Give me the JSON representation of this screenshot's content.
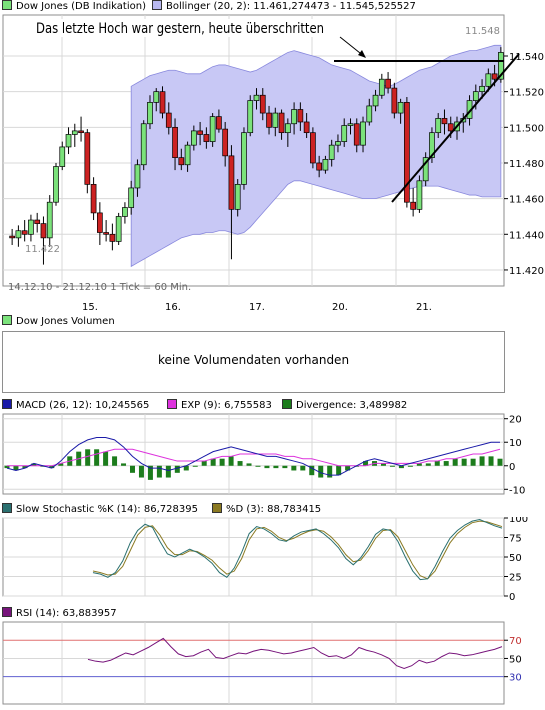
{
  "colors": {
    "up": "#7be27b",
    "down": "#cc2222",
    "band_fill": "#c8c8f5",
    "band_line": "#8888dd",
    "grid": "#d8d8d8",
    "macd": "#1a1aa8",
    "exp": "#dd33dd",
    "divergence": "#1c7c1c",
    "stoch_k": "#2a7070",
    "stoch_d": "#8b7a22",
    "rsi": "#77147b",
    "rsi_upper": "#e07070",
    "rsi_lower": "#6060d0"
  },
  "price_panel": {
    "legend_main": "Dow Jones (DB Indikation)",
    "legend_bollinger": "Bollinger (20, 2): 11.461,274473 - 11.545,525527",
    "annotation": "Das letzte Hoch war gestern, heute überschritten",
    "period": "14.12.10 - 21.12.10",
    "tick_info": "1 Tick = 60 Min.",
    "max_label": "11.548",
    "min_label": "11.422",
    "x_labels": [
      "15.",
      "16.",
      "17.",
      "20.",
      "21."
    ],
    "y_ticks": [
      "11.540",
      "11.520",
      "11.500",
      "11.480",
      "11.460",
      "11.440",
      "11.420"
    ]
  },
  "volume_panel": {
    "legend": "Dow Jones Volumen",
    "message": "keine Volumendaten vorhanden"
  },
  "macd_panel": {
    "legend_macd": "MACD (26, 12): 10,245565",
    "legend_exp": "EXP (9): 6,755583",
    "legend_div": "Divergence: 3,489982",
    "y_ticks": [
      "20",
      "10",
      "0",
      "-10"
    ]
  },
  "stoch_panel": {
    "legend_k": "Slow Stochastic %K (14): 86,728395",
    "legend_d": "%D (3): 88,783415",
    "y_ticks": [
      "100",
      "75",
      "50",
      "25",
      "0"
    ]
  },
  "rsi_panel": {
    "legend": "RSI (14): 63,883957",
    "y_ticks": [
      "70",
      "50",
      "30"
    ]
  },
  "chart_data": [
    {
      "type": "candlestick",
      "title": "Dow Jones (DB Indikation)",
      "ylim": [
        11411,
        11563
      ],
      "x": [
        "14.12.",
        "15.12.",
        "16.12.",
        "17.12.",
        "20.12.",
        "21.12."
      ],
      "candles": [
        [
          11439,
          11443,
          11434,
          11438
        ],
        [
          11438,
          11445,
          11433,
          11442
        ],
        [
          11442,
          11448,
          11436,
          11440
        ],
        [
          11440,
          11451,
          11436,
          11448
        ],
        [
          11448,
          11452,
          11441,
          11446
        ],
        [
          11446,
          11450,
          11423,
          11438
        ],
        [
          11438,
          11462,
          11433,
          11458
        ],
        [
          11458,
          11480,
          11456,
          11478
        ],
        [
          11478,
          11492,
          11476,
          11489
        ],
        [
          11489,
          11500,
          11485,
          11496
        ],
        [
          11496,
          11502,
          11489,
          11498
        ],
        [
          11498,
          11506,
          11492,
          11497
        ],
        [
          11497,
          11499,
          11463,
          11468
        ],
        [
          11468,
          11472,
          11448,
          11452
        ],
        [
          11452,
          11458,
          11434,
          11441
        ],
        [
          11441,
          11448,
          11436,
          11440
        ],
        [
          11440,
          11446,
          11431,
          11436
        ],
        [
          11436,
          11452,
          11434,
          11450
        ],
        [
          11450,
          11458,
          11446,
          11455
        ],
        [
          11455,
          11470,
          11451,
          11466
        ],
        [
          11466,
          11482,
          11461,
          11479
        ],
        [
          11479,
          11504,
          11476,
          11502
        ],
        [
          11502,
          11518,
          11499,
          11514
        ],
        [
          11514,
          11522,
          11509,
          11520
        ],
        [
          11520,
          11523,
          11505,
          11508
        ],
        [
          11508,
          11514,
          11496,
          11500
        ],
        [
          11500,
          11505,
          11476,
          11483
        ],
        [
          11483,
          11488,
          11476,
          11479
        ],
        [
          11479,
          11492,
          11475,
          11490
        ],
        [
          11490,
          11501,
          11487,
          11498
        ],
        [
          11498,
          11503,
          11490,
          11496
        ],
        [
          11496,
          11500,
          11488,
          11492
        ],
        [
          11492,
          11508,
          11489,
          11506
        ],
        [
          11506,
          11510,
          11497,
          11499
        ],
        [
          11499,
          11503,
          11478,
          11484
        ],
        [
          11484,
          11490,
          11426,
          11454
        ],
        [
          11454,
          11471,
          11450,
          11468
        ],
        [
          11468,
          11500,
          11465,
          11497
        ],
        [
          11497,
          11518,
          11495,
          11515
        ],
        [
          11515,
          11522,
          11510,
          11518
        ],
        [
          11518,
          11522,
          11504,
          11508
        ],
        [
          11508,
          11512,
          11496,
          11500
        ],
        [
          11500,
          11511,
          11495,
          11508
        ],
        [
          11508,
          11510,
          11493,
          11497
        ],
        [
          11497,
          11505,
          11489,
          11502
        ],
        [
          11502,
          11514,
          11496,
          11510
        ],
        [
          11510,
          11514,
          11498,
          11503
        ],
        [
          11503,
          11508,
          11494,
          11497
        ],
        [
          11497,
          11500,
          11477,
          11480
        ],
        [
          11480,
          11484,
          11472,
          11476
        ],
        [
          11476,
          11484,
          11474,
          11482
        ],
        [
          11482,
          11493,
          11478,
          11490
        ],
        [
          11490,
          11496,
          11486,
          11492
        ],
        [
          11492,
          11505,
          11489,
          11501
        ],
        [
          11501,
          11505,
          11496,
          11502
        ],
        [
          11502,
          11505,
          11486,
          11490
        ],
        [
          11490,
          11506,
          11486,
          11503
        ],
        [
          11503,
          11516,
          11501,
          11512
        ],
        [
          11512,
          11521,
          11509,
          11518
        ],
        [
          11518,
          11530,
          11516,
          11527
        ],
        [
          11527,
          11531,
          11519,
          11522
        ],
        [
          11522,
          11525,
          11505,
          11508
        ],
        [
          11508,
          11516,
          11502,
          11514
        ],
        [
          11514,
          11517,
          11455,
          11458
        ],
        [
          11458,
          11466,
          11450,
          11454
        ],
        [
          11454,
          11473,
          11452,
          11470
        ],
        [
          11470,
          11486,
          11467,
          11483
        ],
        [
          11483,
          11500,
          11480,
          11497
        ],
        [
          11497,
          11508,
          11494,
          11505
        ],
        [
          11505,
          11510,
          11496,
          11502
        ],
        [
          11502,
          11506,
          11494,
          11498
        ],
        [
          11498,
          11506,
          11493,
          11503
        ],
        [
          11503,
          11508,
          11497,
          11505
        ],
        [
          11505,
          11518,
          11501,
          11515
        ],
        [
          11515,
          11524,
          11510,
          11520
        ],
        [
          11520,
          11527,
          11516,
          11523
        ],
        [
          11523,
          11533,
          11520,
          11530
        ],
        [
          11530,
          11535,
          11523,
          11527
        ],
        [
          11527,
          11545,
          11525,
          11542
        ]
      ],
      "bollinger_upper": [
        11523,
        11525,
        11527,
        11529,
        11530,
        11531,
        11532,
        11532,
        11531,
        11530,
        11530,
        11530,
        11532,
        11534,
        11535,
        11535,
        11534,
        11533,
        11532,
        11531,
        11532,
        11534,
        11536,
        11538,
        11540,
        11542,
        11543,
        11542,
        11541,
        11540,
        11539,
        11537,
        11535,
        11534,
        11533,
        11532,
        11530,
        11528,
        11526,
        11525,
        11524,
        11523,
        11524,
        11526,
        11528,
        11530,
        11532,
        11533,
        11534,
        11536,
        11538,
        11540,
        11541,
        11542,
        11543,
        11543,
        11544,
        11545,
        11546,
        11546
      ],
      "bollinger_lower": [
        11422,
        11424,
        11426,
        11428,
        11430,
        11432,
        11434,
        11436,
        11438,
        11439,
        11440,
        11440,
        11441,
        11441,
        11442,
        11442,
        11441,
        11440,
        11441,
        11444,
        11448,
        11452,
        11456,
        11460,
        11464,
        11468,
        11470,
        11470,
        11469,
        11468,
        11467,
        11466,
        11465,
        11464,
        11463,
        11462,
        11461,
        11460,
        11460,
        11460,
        11461,
        11462,
        11463,
        11464,
        11465,
        11466,
        11467,
        11467,
        11467,
        11467,
        11466,
        11465,
        11464,
        11463,
        11462,
        11462,
        11461,
        11461,
        11461,
        11461
      ]
    },
    {
      "type": "line",
      "title": "MACD (26, 12)",
      "ylim": [
        -12,
        22
      ],
      "series": [
        {
          "name": "MACD",
          "values": [
            -1,
            -2,
            -1,
            1,
            0,
            -1,
            2,
            6,
            9,
            11,
            12,
            12,
            11,
            8,
            4,
            1,
            -1,
            -1,
            -2,
            -1,
            0,
            2,
            4,
            6,
            7,
            8,
            7,
            6,
            5,
            4,
            4,
            3,
            2,
            1,
            -1,
            -3,
            -4,
            -4,
            -2,
            0,
            2,
            3,
            2,
            1,
            0,
            1,
            2,
            3,
            4,
            5,
            6,
            7,
            8,
            9,
            10,
            10
          ]
        },
        {
          "name": "EXP",
          "values": [
            0,
            0,
            0,
            0,
            0,
            0,
            1,
            2,
            3,
            4,
            5,
            6,
            7,
            7,
            7,
            6,
            5,
            4,
            3,
            2,
            2,
            2,
            2,
            3,
            4,
            4,
            5,
            5,
            5,
            5,
            5,
            4,
            4,
            3,
            3,
            2,
            1,
            0,
            0,
            0,
            0,
            1,
            1,
            1,
            1,
            1,
            1,
            2,
            2,
            3,
            3,
            4,
            5,
            5,
            6,
            7
          ]
        },
        {
          "name": "Divergence",
          "values": [
            -1,
            -2,
            -1,
            1,
            0,
            -1,
            1,
            4,
            6,
            7,
            7,
            6,
            4,
            1,
            -3,
            -5,
            -6,
            -5,
            -5,
            -3,
            -2,
            0,
            2,
            3,
            3,
            4,
            2,
            1,
            0,
            -1,
            -1,
            -1,
            -2,
            -2,
            -4,
            -5,
            -5,
            -4,
            -2,
            0,
            2,
            2,
            1,
            0,
            -1,
            0,
            1,
            1,
            2,
            2,
            3,
            3,
            3,
            4,
            4,
            3
          ]
        }
      ]
    },
    {
      "type": "line",
      "title": "Slow Stochastic",
      "ylim": [
        0,
        100
      ],
      "series": [
        {
          "name": "%K",
          "values": [
            30,
            28,
            24,
            30,
            45,
            68,
            84,
            92,
            88,
            70,
            54,
            50,
            55,
            60,
            56,
            50,
            42,
            30,
            24,
            36,
            56,
            80,
            89,
            86,
            80,
            72,
            70,
            77,
            82,
            84,
            86,
            80,
            72,
            62,
            48,
            40,
            49,
            63,
            79,
            86,
            84,
            70,
            50,
            32,
            21,
            22,
            38,
            57,
            74,
            84,
            91,
            96,
            98,
            94,
            90,
            87
          ]
        },
        {
          "name": "%D",
          "values": [
            32,
            30,
            27,
            28,
            38,
            58,
            78,
            88,
            90,
            78,
            62,
            53,
            53,
            58,
            57,
            52,
            46,
            36,
            28,
            32,
            48,
            72,
            86,
            88,
            83,
            75,
            71,
            74,
            79,
            83,
            85,
            83,
            76,
            66,
            53,
            44,
            46,
            58,
            74,
            84,
            85,
            76,
            58,
            40,
            26,
            22,
            32,
            50,
            68,
            80,
            88,
            94,
            96,
            95,
            92,
            89
          ]
        }
      ]
    },
    {
      "type": "line",
      "title": "RSI (14)",
      "ylim": [
        0,
        90
      ],
      "series": [
        {
          "name": "RSI",
          "values": [
            49,
            47,
            46,
            48,
            52,
            56,
            54,
            58,
            62,
            67,
            72,
            63,
            55,
            52,
            53,
            57,
            60,
            51,
            50,
            53,
            56,
            55,
            58,
            60,
            59,
            57,
            55,
            56,
            58,
            60,
            62,
            56,
            52,
            53,
            50,
            54,
            62,
            59,
            57,
            54,
            50,
            42,
            39,
            42,
            48,
            45,
            47,
            52,
            56,
            55,
            53,
            54,
            56,
            58,
            60,
            63
          ]
        }
      ]
    }
  ]
}
